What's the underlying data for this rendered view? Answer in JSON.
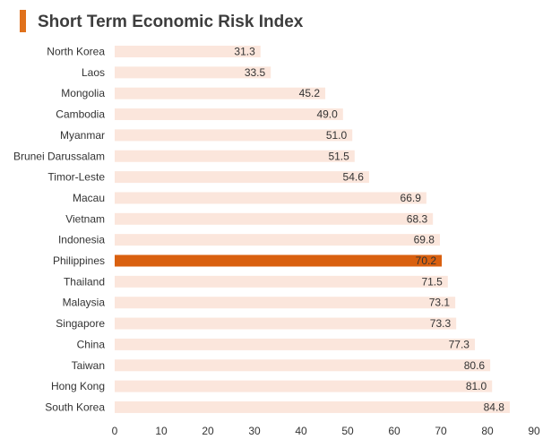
{
  "chart_data": {
    "type": "bar",
    "orientation": "horizontal",
    "title": "Short Term Economic Risk Index",
    "categories": [
      "North Korea",
      "Laos",
      "Mongolia",
      "Cambodia",
      "Myanmar",
      "Brunei Darussalam",
      "Timor-Leste",
      "Macau",
      "Vietnam",
      "Indonesia",
      "Philippines",
      "Thailand",
      "Malaysia",
      "Singapore",
      "China",
      "Taiwan",
      "Hong Kong",
      "South Korea"
    ],
    "values": [
      31.3,
      33.5,
      45.2,
      49.0,
      51.0,
      51.5,
      54.6,
      66.9,
      68.3,
      69.8,
      70.2,
      71.5,
      73.1,
      73.3,
      77.3,
      80.6,
      81.0,
      84.8
    ],
    "value_labels": [
      "31.3",
      "33.5",
      "45.2",
      "49.0",
      "51.0",
      "51.5",
      "54.6",
      "66.9",
      "68.3",
      "69.8",
      "70.2",
      "71.5",
      "73.1",
      "73.3",
      "77.3",
      "80.6",
      "81.0",
      "84.8"
    ],
    "highlight": "Philippines",
    "xlim": [
      0,
      90
    ],
    "xticks": [
      0,
      10,
      20,
      30,
      40,
      50,
      60,
      70,
      80,
      90
    ],
    "xlabel": "",
    "ylabel": "",
    "grid": false,
    "legend": "none",
    "colors": {
      "bar": "#fbe6dc",
      "highlight": "#d9600f",
      "title_accent": "#e0711c"
    }
  }
}
